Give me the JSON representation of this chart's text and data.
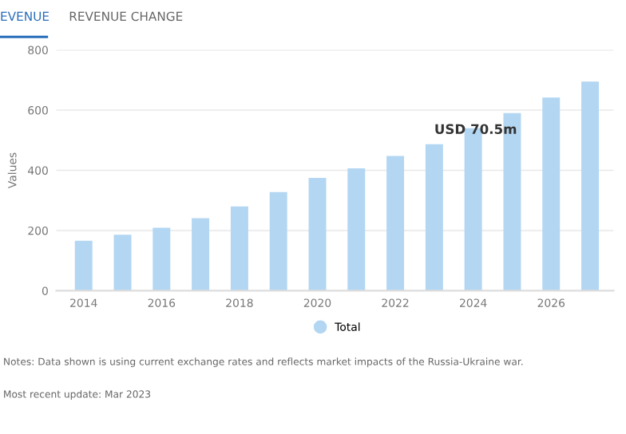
{
  "chart_data": {
    "type": "bar",
    "ylabel": "Values",
    "categories": [
      "2014",
      null,
      "2016",
      null,
      "2018",
      null,
      "2020",
      null,
      "2022",
      null,
      "2024",
      null,
      "2026",
      null
    ],
    "series": [
      {
        "name": "Total",
        "color": "#b3d6f2",
        "values": [
          166,
          186,
          209,
          241,
          280,
          328,
          375,
          407,
          448,
          487,
          540,
          590,
          642,
          695
        ]
      }
    ],
    "ylim": [
      0,
      800
    ],
    "yticks": [
      0,
      200,
      400,
      600,
      800
    ],
    "grid": "y",
    "legend": "bottom",
    "annotations": [
      "EVENUE",
      "REVENUE CHANGE",
      "USD 70.5m",
      "Notes: Data shown is using current exchange rates and reflects market impacts of the Russia-Ukraine war.",
      "Most recent update: Mar 2023"
    ]
  }
}
